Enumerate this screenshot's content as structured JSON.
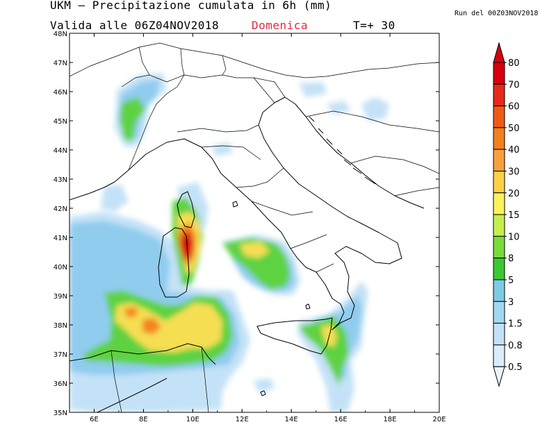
{
  "header": {
    "title": "UKM – Precipitazione cumulata in 6h (mm)",
    "run": "Run del 00Z03NOV2018",
    "valid": "Valida alle 06Z04NOV2018",
    "day": "Domenica",
    "step": "T=+ 30"
  },
  "colors": {
    "day": "#e8283c"
  },
  "map": {
    "lat_labels": [
      "48N",
      "47N",
      "46N",
      "45N",
      "44N",
      "43N",
      "42N",
      "41N",
      "40N",
      "39N",
      "38N",
      "37N",
      "36N",
      "35N"
    ],
    "lon_labels": [
      "6E",
      "8E",
      "10E",
      "12E",
      "14E",
      "16E",
      "18E",
      "20E"
    ],
    "lon_range": [
      5,
      20
    ],
    "lat_range": [
      35,
      48
    ]
  },
  "legend": {
    "levels": [
      "80",
      "70",
      "60",
      "50",
      "40",
      "30",
      "20",
      "15",
      "10",
      "8",
      "5",
      "3",
      "1.5",
      "0.8",
      "0.5"
    ],
    "colors": [
      "#d7000e",
      "#e8281c",
      "#ee5a16",
      "#f2801e",
      "#f6a13c",
      "#fbd146",
      "#fdf25a",
      "#c6ee4e",
      "#78dc3c",
      "#3cc832",
      "#7ecbe6",
      "#a4d8f0",
      "#c4e2f7",
      "#dbecfb",
      "#ecf5fd"
    ]
  }
}
